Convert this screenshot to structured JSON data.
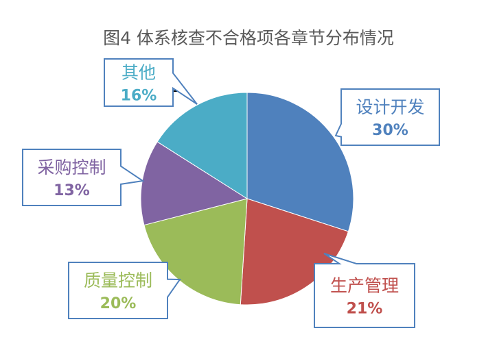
{
  "chart_data": {
    "type": "pie",
    "title": "图4 体系核查不合格项各章节分布情况",
    "categories": [
      "设计开发",
      "生产管理",
      "质量控制",
      "采购控制",
      "其他"
    ],
    "values": [
      30,
      21,
      20,
      13,
      16
    ],
    "labels": [
      "30%",
      "21%",
      "20%",
      "13%",
      "16%"
    ],
    "colors": [
      "#4F81BD",
      "#C0504D",
      "#9BBB59",
      "#8064A2",
      "#4BACC6"
    ],
    "start": "12 o'clock, clockwise",
    "callout_border": "#4F81BD"
  }
}
